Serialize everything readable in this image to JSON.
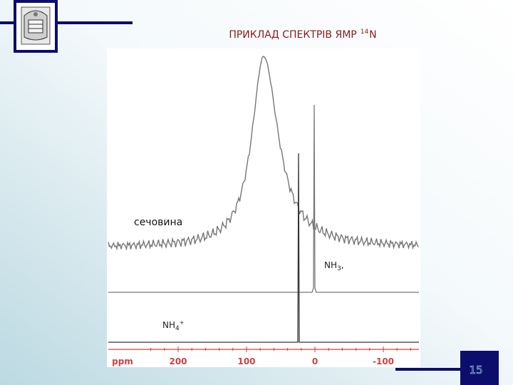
{
  "title": {
    "text": "ПРИКЛАД СПЕКТРІВ ЯМР",
    "superscript": "14",
    "nucleus": "N"
  },
  "spectrum": {
    "labels": {
      "urea": "сечовина",
      "nh3": "NH",
      "nh3_sub": "3",
      "nh3_suffix": ",",
      "nh4": "NH",
      "nh4_sub": "4",
      "nh4_sup": "+"
    },
    "axis": {
      "unit": "ppm",
      "ticks": [
        200,
        100,
        0,
        -100
      ]
    }
  },
  "slide_number": "15"
}
